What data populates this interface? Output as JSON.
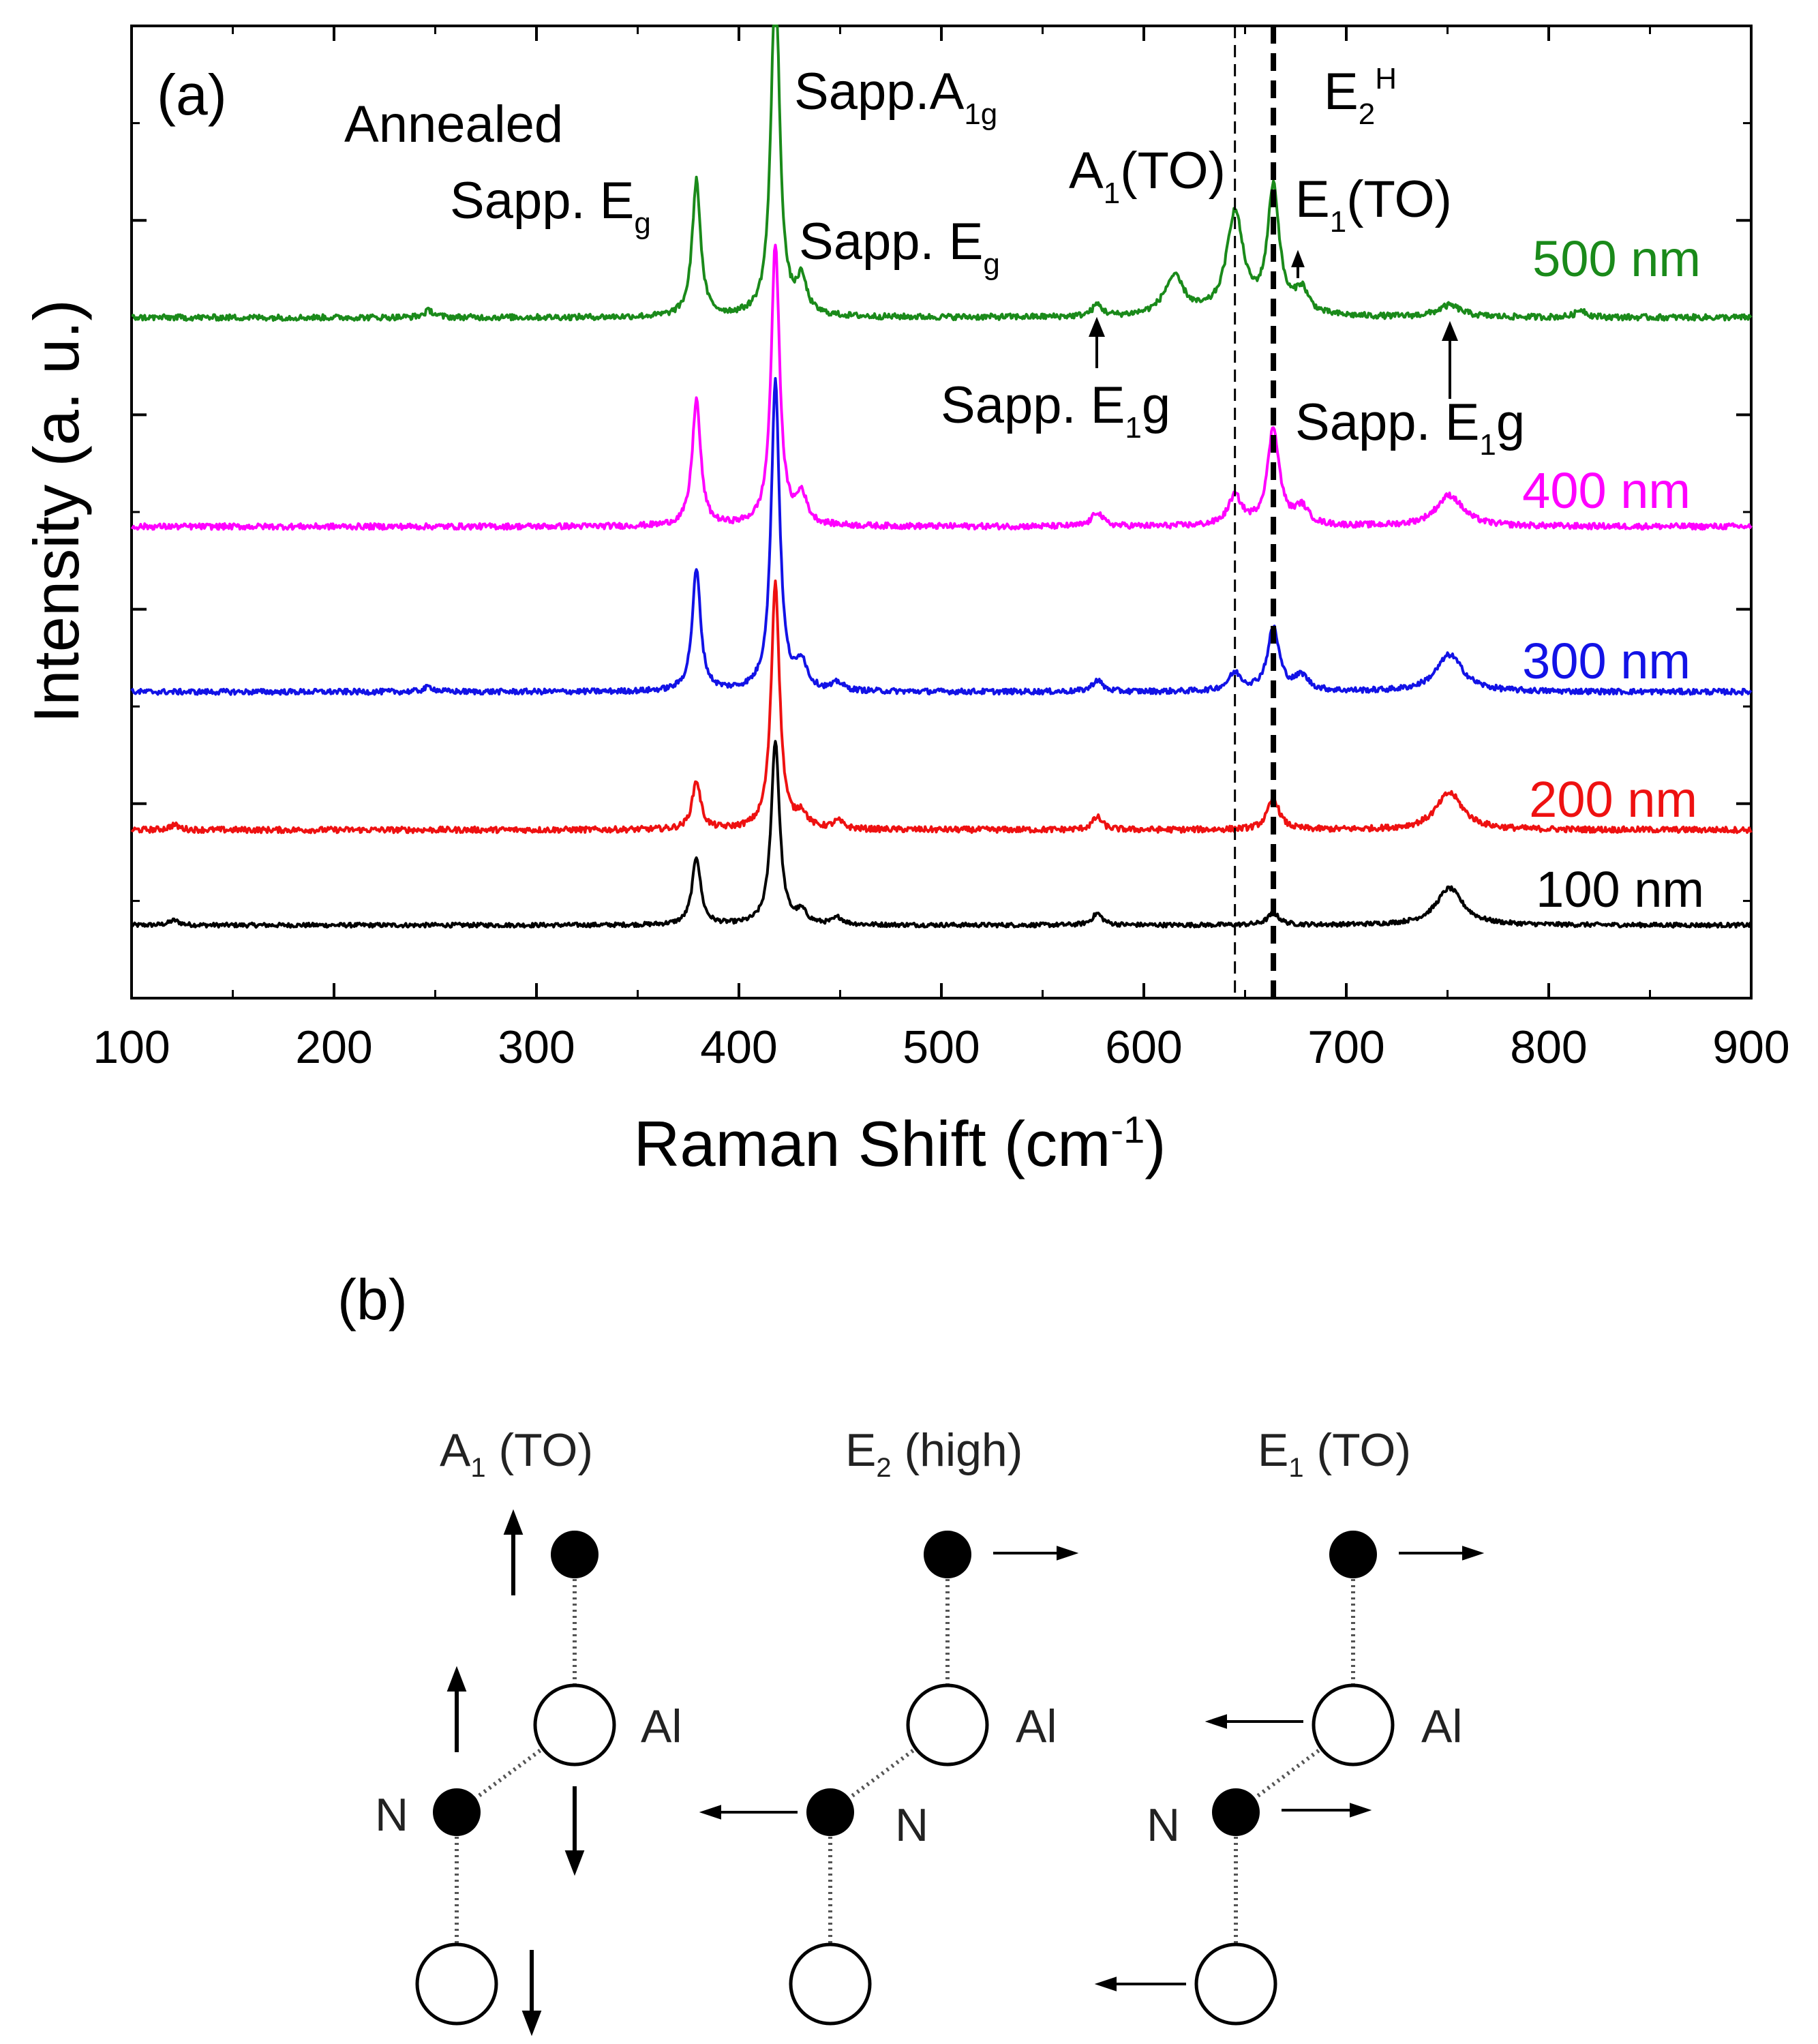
{
  "figure": {
    "panel_a_label": "(a)",
    "panel_b_label": "(b)"
  },
  "chart_data": {
    "type": "line",
    "title": "",
    "condition_label": "Annealed",
    "xlabel": "Raman Shift (cm",
    "xlabel_sup": "-1",
    "xlabel_close": ")",
    "ylabel": "Intensity (a. u.)",
    "xlim": [
      100,
      900
    ],
    "xticks": [
      100,
      200,
      300,
      400,
      500,
      600,
      700,
      800,
      900
    ],
    "y_ticks_labeled": false,
    "ylim": [
      0,
      10
    ],
    "series": [
      {
        "name": "500 nm",
        "color": "#1a8a1a",
        "baseline": 7.0,
        "noise": 0.03,
        "peaks": [
          [
            247,
            0.07,
            3
          ],
          [
            379,
            1.4,
            2.5
          ],
          [
            418,
            3.6,
            2.5
          ],
          [
            431,
            0.35,
            3
          ],
          [
            577,
            0.12,
            3
          ],
          [
            615,
            0.4,
            6
          ],
          [
            645,
            1.05,
            5
          ],
          [
            664,
            1.3,
            3.5
          ],
          [
            678,
            0.25,
            4
          ],
          [
            751,
            0.12,
            7
          ],
          [
            816,
            0.08,
            3
          ]
        ]
      },
      {
        "name": "400 nm",
        "color": "#ff00ff",
        "baseline": 4.85,
        "noise": 0.03,
        "peaks": [
          [
            379,
            1.3,
            2.5
          ],
          [
            418,
            2.9,
            2.5
          ],
          [
            431,
            0.3,
            3
          ],
          [
            577,
            0.15,
            3
          ],
          [
            645,
            0.3,
            4
          ],
          [
            664,
            1.0,
            3.5
          ],
          [
            678,
            0.18,
            4
          ],
          [
            751,
            0.32,
            8
          ]
        ]
      },
      {
        "name": "300 nm",
        "color": "#1212e6",
        "baseline": 3.15,
        "noise": 0.028,
        "peaks": [
          [
            247,
            0.05,
            3
          ],
          [
            379,
            1.25,
            2.5
          ],
          [
            418,
            3.2,
            2.5
          ],
          [
            431,
            0.28,
            3
          ],
          [
            449,
            0.08,
            3
          ],
          [
            577,
            0.12,
            3
          ],
          [
            645,
            0.18,
            4
          ],
          [
            664,
            0.65,
            3.5
          ],
          [
            678,
            0.15,
            4
          ],
          [
            751,
            0.38,
            8
          ]
        ]
      },
      {
        "name": "200 nm",
        "color": "#ee1111",
        "baseline": 1.73,
        "noise": 0.03,
        "peaks": [
          [
            121,
            0.05,
            3
          ],
          [
            379,
            0.5,
            2.5
          ],
          [
            418,
            2.55,
            2.5
          ],
          [
            431,
            0.15,
            3
          ],
          [
            449,
            0.08,
            3
          ],
          [
            577,
            0.13,
            3
          ],
          [
            664,
            0.32,
            3.5
          ],
          [
            751,
            0.38,
            8
          ]
        ]
      },
      {
        "name": "100 nm",
        "color": "#000000",
        "baseline": 0.75,
        "noise": 0.022,
        "peaks": [
          [
            121,
            0.05,
            3
          ],
          [
            379,
            0.7,
            2.5
          ],
          [
            418,
            1.9,
            2.5
          ],
          [
            431,
            0.12,
            3
          ],
          [
            449,
            0.07,
            3
          ],
          [
            577,
            0.12,
            3
          ],
          [
            664,
            0.12,
            3.5
          ],
          [
            751,
            0.38,
            8
          ]
        ]
      }
    ],
    "reference_lines": [
      {
        "x": 645,
        "label": "A1(TO) position",
        "style": "dashed-thin"
      },
      {
        "x": 664,
        "label": "E2H position",
        "style": "dashed-thick"
      }
    ],
    "annotations": {
      "sapp_a1g": {
        "text": "Sapp.A",
        "sub": "1g"
      },
      "sapp_eg_left": {
        "text": "Sapp. E",
        "sub": "g"
      },
      "sapp_eg_right": {
        "text": "Sapp. E",
        "sub": "g"
      },
      "a1_to": {
        "text": "A",
        "sub": "1",
        "rest": "(TO)"
      },
      "e2h": {
        "text": "E",
        "sub": "2",
        "sup": "H"
      },
      "e1_to": {
        "text": "E",
        "sub": "1",
        "rest": "(TO)"
      },
      "sapp_e1g_left": {
        "text": "Sapp. E",
        "sub": "1",
        "rest": "g"
      },
      "sapp_e1g_right": {
        "text": "Sapp. E",
        "sub": "1",
        "rest": "g"
      }
    }
  },
  "diagram": {
    "modes": [
      {
        "name": "A",
        "sub": "1",
        "rest": " (TO)"
      },
      {
        "name": "E",
        "sub": "2",
        "rest": " (high)"
      },
      {
        "name": "E",
        "sub": "1",
        "rest": " (TO)"
      }
    ],
    "atom_al": "Al",
    "atom_n": "N"
  }
}
